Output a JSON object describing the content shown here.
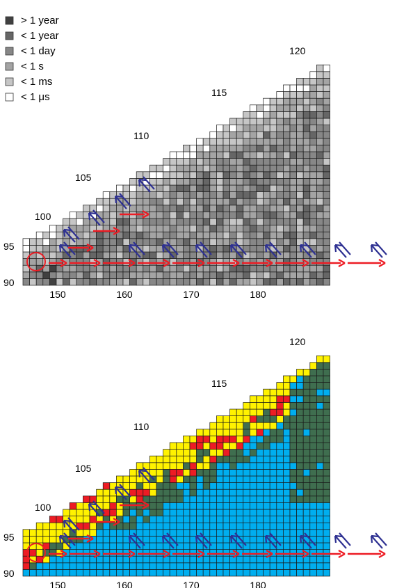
{
  "legend": {
    "items": [
      {
        "label": "> 1 year",
        "color": "#404040"
      },
      {
        "label": "< 1 year",
        "color": "#666666"
      },
      {
        "label": "< 1 day",
        "color": "#878787"
      },
      {
        "label": "< 1 s",
        "color": "#a4a4a4"
      },
      {
        "label": "< 1 ms",
        "color": "#c6c6c6"
      },
      {
        "label": "< 1 μs",
        "color": "#ffffff"
      }
    ]
  },
  "palette": {
    "cyan": "#00aeef",
    "darkgreen": "#3f6e4f",
    "yellow": "#fff200",
    "red": "#ed1c24",
    "arrow_red": "#ed1c24",
    "arrow_blue": "#2e3192",
    "grid_line": "#1a1a1a"
  },
  "axes": {
    "x_ticks": [
      "150",
      "160",
      "170",
      "180"
    ],
    "y_ticks": [
      "90",
      "95"
    ],
    "diag_labels": [
      "100",
      "105",
      "110",
      "115",
      "120"
    ]
  },
  "chart_data": [
    {
      "type": "heatmap",
      "panel": "top",
      "x_ticks": [
        150,
        160,
        170,
        180
      ],
      "y_ticks": [
        90,
        95
      ],
      "diagonal_labels": [
        100,
        105,
        110,
        115,
        120
      ],
      "legend": [
        "> 1 year",
        "< 1 year",
        "< 1 day",
        "< 1 s",
        "< 1 ms",
        "< 1 μs"
      ]
    },
    {
      "type": "heatmap",
      "panel": "bottom",
      "x_ticks": [
        150,
        160,
        170,
        180
      ],
      "y_ticks": [
        90,
        95
      ],
      "diagonal_labels": [
        100,
        105,
        110,
        115,
        120
      ]
    }
  ]
}
